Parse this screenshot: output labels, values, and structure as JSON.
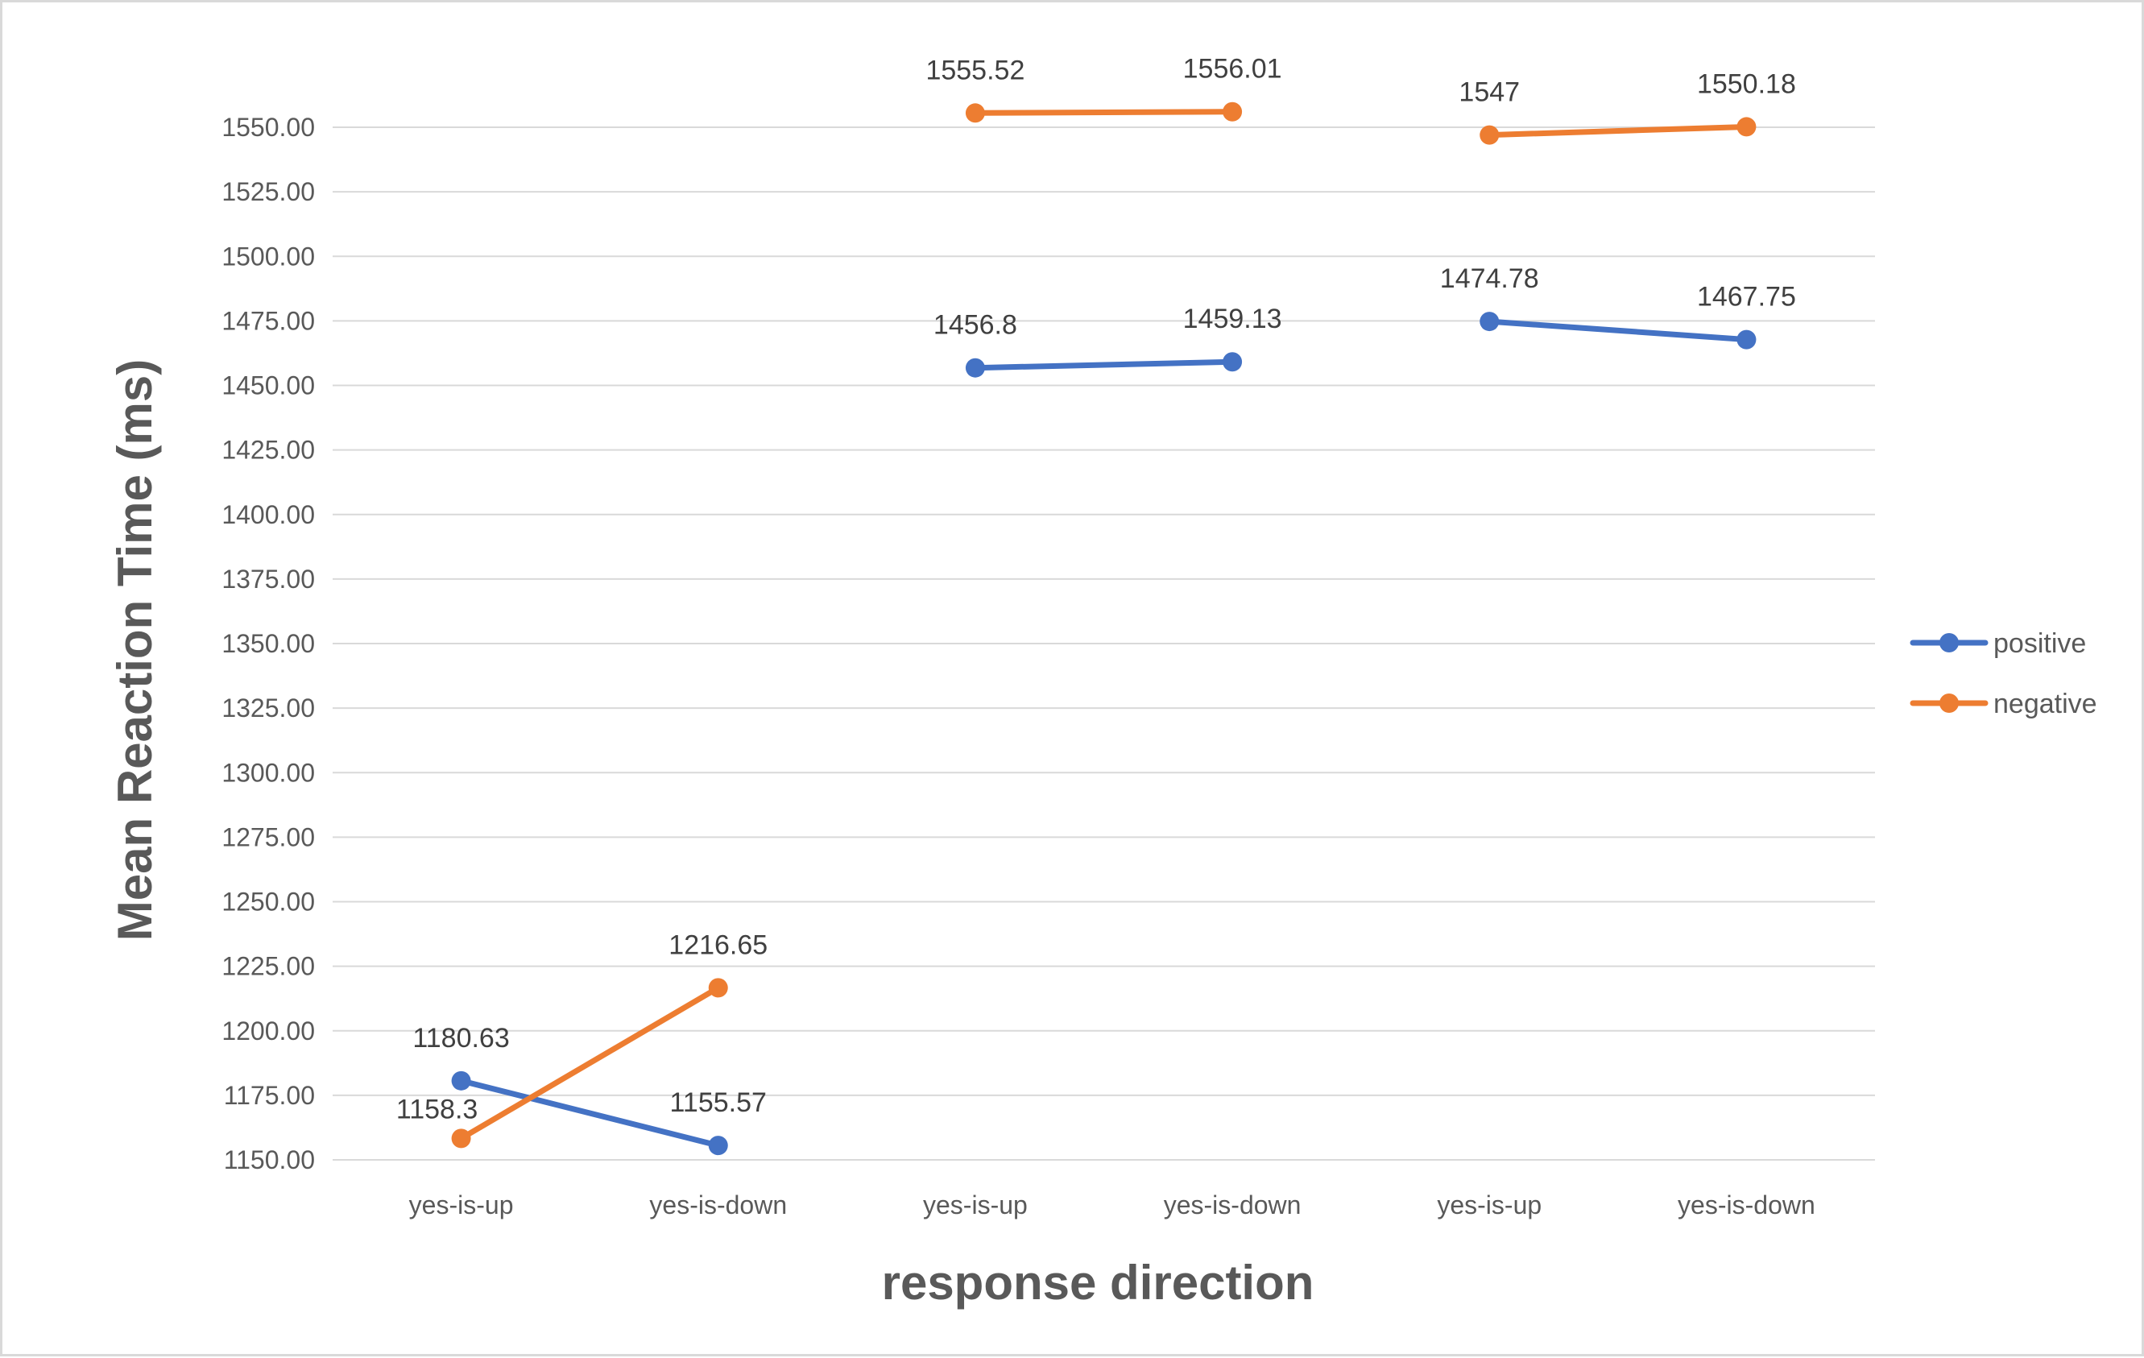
{
  "chart_data": {
    "type": "line",
    "title": "",
    "xlabel": "response direction",
    "ylabel": "Mean Reaction Time (ms)",
    "categories": [
      "yes-is-up",
      "yes-is-down",
      "yes-is-up",
      "yes-is-down",
      "yes-is-up",
      "yes-is-down"
    ],
    "groups": [
      [
        0,
        1
      ],
      [
        2,
        3
      ],
      [
        4,
        5
      ]
    ],
    "ylim": [
      1150,
      1550
    ],
    "ytick_step": 25,
    "ytick_labels": [
      "1150.00",
      "1175.00",
      "1200.00",
      "1225.00",
      "1250.00",
      "1275.00",
      "1300.00",
      "1325.00",
      "1350.00",
      "1375.00",
      "1400.00",
      "1425.00",
      "1450.00",
      "1475.00",
      "1500.00",
      "1525.00",
      "1550.00"
    ],
    "grid": true,
    "legend_position": "right",
    "series": [
      {
        "name": "positive",
        "color": "#4472C4",
        "values": [
          1180.63,
          1155.57,
          1456.8,
          1459.13,
          1474.78,
          1467.75
        ],
        "labels": [
          "1180.63",
          "1155.57",
          "1456.8",
          "1459.13",
          "1474.78",
          "1467.75"
        ]
      },
      {
        "name": "negative",
        "color": "#ED7D31",
        "values": [
          1158.3,
          1216.65,
          1555.52,
          1556.01,
          1547,
          1550.18
        ],
        "labels": [
          "1158.3",
          "1216.65",
          "1555.52",
          "1556.01",
          "1547",
          "1550.18"
        ]
      }
    ]
  }
}
